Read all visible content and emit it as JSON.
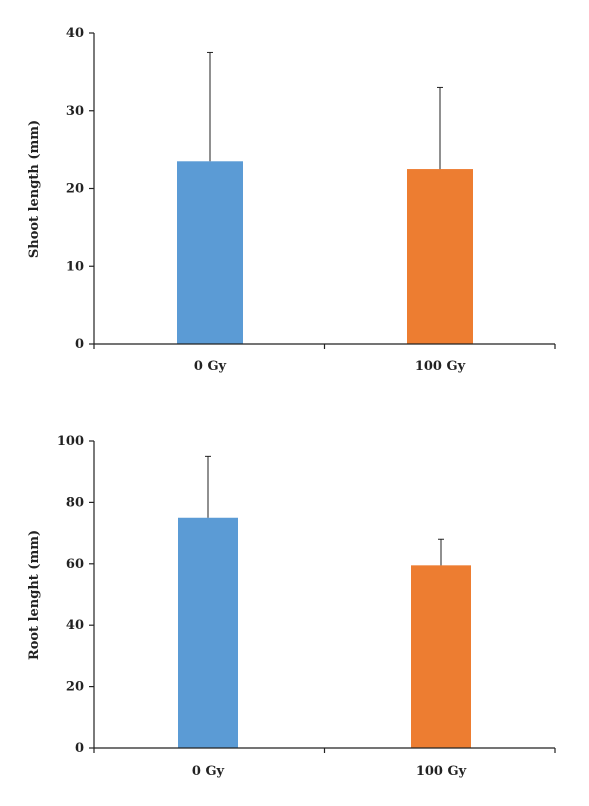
{
  "chart_data": [
    {
      "type": "bar",
      "categories": [
        "0 Gy",
        "100 Gy"
      ],
      "values": [
        23.5,
        22.5
      ],
      "errors": [
        14.0,
        10.5
      ],
      "ylabel": "Shoot length (mm)",
      "ylim": [
        0,
        40
      ],
      "yticks": [
        0,
        10,
        20,
        30,
        40
      ],
      "colors": [
        "#5b9bd5",
        "#ed7d31"
      ],
      "grid": false
    },
    {
      "type": "bar",
      "categories": [
        "0 Gy",
        "100 Gy"
      ],
      "values": [
        75,
        59.5
      ],
      "errors": [
        20,
        8.5
      ],
      "ylabel": "Root lenght (mm)",
      "ylim": [
        0,
        100
      ],
      "yticks": [
        0,
        20,
        40,
        60,
        80,
        100
      ],
      "colors": [
        "#5b9bd5",
        "#ed7d31"
      ],
      "grid": false
    }
  ]
}
